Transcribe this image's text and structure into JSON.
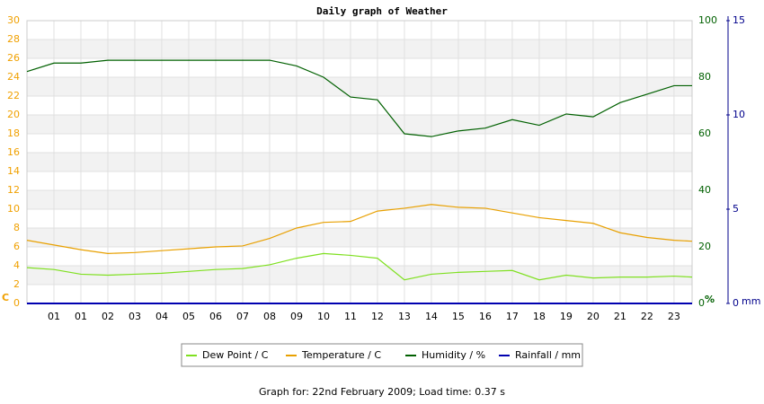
{
  "chart_data": {
    "type": "line",
    "title": "Daily graph of Weather",
    "y_label": "C",
    "y2_label": "%",
    "y3_label": "mm",
    "footer": "Graph for: 22nd February 2009; Load time: 0.37 s",
    "x": [
      0,
      1,
      2,
      3,
      4,
      5,
      6,
      7,
      8,
      9,
      10,
      11,
      12,
      13,
      14,
      15,
      16,
      17,
      18,
      19,
      20,
      21,
      22,
      23,
      24,
      24.67
    ],
    "xlim": [
      0,
      24.67
    ],
    "xticks": [
      {
        "value": 1,
        "label": "01"
      },
      {
        "value": 2,
        "label": "01"
      },
      {
        "value": 3,
        "label": "02"
      },
      {
        "value": 4,
        "label": "03"
      },
      {
        "value": 5,
        "label": "04"
      },
      {
        "value": 6,
        "label": "05"
      },
      {
        "value": 7,
        "label": "06"
      },
      {
        "value": 8,
        "label": "07"
      },
      {
        "value": 9,
        "label": "08"
      },
      {
        "value": 10,
        "label": "09"
      },
      {
        "value": 11,
        "label": "10"
      },
      {
        "value": 12,
        "label": "11"
      },
      {
        "value": 13,
        "label": "12"
      },
      {
        "value": 14,
        "label": "13"
      },
      {
        "value": 15,
        "label": "14"
      },
      {
        "value": 16,
        "label": "15"
      },
      {
        "value": 17,
        "label": "16"
      },
      {
        "value": 18,
        "label": "17"
      },
      {
        "value": 19,
        "label": "18"
      },
      {
        "value": 20,
        "label": "19"
      },
      {
        "value": 21,
        "label": "20"
      },
      {
        "value": 22,
        "label": "21"
      },
      {
        "value": 23,
        "label": "22"
      },
      {
        "value": 24,
        "label": "23"
      }
    ],
    "ylim": [
      0,
      30
    ],
    "yticks": [
      0,
      2,
      4,
      6,
      8,
      10,
      12,
      14,
      16,
      18,
      20,
      22,
      24,
      26,
      28,
      30
    ],
    "y_color": "#f0a000",
    "y2lim": [
      0,
      100
    ],
    "y2ticks": [
      0,
      20,
      40,
      60,
      80,
      100
    ],
    "y2_color": "#006000",
    "y3lim": [
      0,
      15
    ],
    "y3ticks": [
      0,
      5,
      10,
      15
    ],
    "y3_color": "#00008b",
    "grid": true,
    "series": [
      {
        "name": "Dew Point / C",
        "color": "#7fe020",
        "axis": "y",
        "values": [
          3.8,
          3.6,
          3.1,
          3.0,
          3.1,
          3.2,
          3.4,
          3.6,
          3.7,
          4.1,
          4.8,
          5.3,
          5.1,
          4.8,
          2.5,
          3.1,
          3.3,
          3.4,
          3.5,
          2.5,
          3.0,
          2.7,
          2.8,
          2.8,
          2.9,
          2.8
        ]
      },
      {
        "name": "Temperature / C",
        "color": "#e8a000",
        "axis": "y",
        "values": [
          6.7,
          6.2,
          5.7,
          5.3,
          5.4,
          5.6,
          5.8,
          6.0,
          6.1,
          6.9,
          8.0,
          8.6,
          8.7,
          9.8,
          10.1,
          10.5,
          10.2,
          10.1,
          9.6,
          9.1,
          8.8,
          8.5,
          7.5,
          7.0,
          6.7,
          6.6
        ]
      },
      {
        "name": "Humidity / %",
        "color": "#006000",
        "axis": "y2",
        "values": [
          82,
          85,
          85,
          86,
          86,
          86,
          86,
          86,
          86,
          86,
          84,
          80,
          73,
          72,
          60,
          59,
          61,
          62,
          65,
          63,
          67,
          66,
          71,
          74,
          77,
          77
        ]
      },
      {
        "name": "Rainfall / mm",
        "color": "#0000b0",
        "axis": "y3",
        "values": [
          0,
          0,
          0,
          0,
          0,
          0,
          0,
          0,
          0,
          0,
          0,
          0,
          0,
          0,
          0,
          0,
          0,
          0,
          0,
          0,
          0,
          0,
          0,
          0,
          0,
          0
        ]
      }
    ]
  }
}
